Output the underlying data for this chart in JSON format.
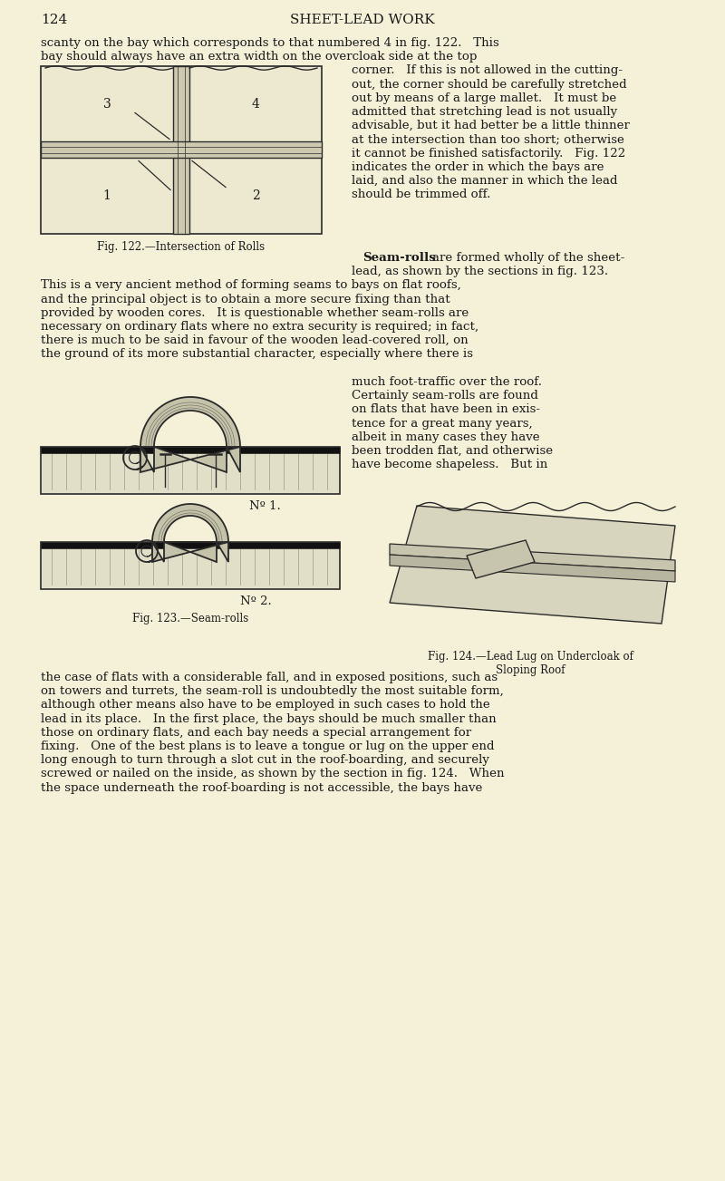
{
  "bg_color": "#f5f0d8",
  "page_number": "124",
  "header_title": "SHEET-LEAD WORK",
  "fig122_caption": "Fig. 122.—Intersection of Rolls",
  "fig123_caption": "Fig. 123.—Seam-rolls",
  "fig124_caption": "Fig. 124.—Lead Lug on Undercloak of\nSloping Roof",
  "no1_label": "Nº 1.",
  "no2_label": "Nº 2.",
  "text_color": "#1a1a1a",
  "line_color": "#2a2a2a",
  "right_col_texts": [
    "corner.   If this is not allowed in the cutting-",
    "out, the corner should be carefully stretched",
    "out by means of a large mallet.   It must be",
    "admitted that stretching lead is not usually",
    "advisable, but it had better be a little thinner",
    "at the intersection than too short; otherwise",
    "it cannot be finished satisfactorily.   Fig. 122",
    "indicates the order in which the bays are",
    "laid, and also the manner in which the lead",
    "should be trimmed off."
  ],
  "full_paragraphs": [
    "This is a very ancient method of forming seams to bays on flat roofs,",
    "and the principal object is to obtain a more secure fixing than that",
    "provided by wooden cores.   It is questionable whether seam-rolls are",
    "necessary on ordinary flats where no extra security is required; in fact,",
    "there is much to be said in favour of the wooden lead-covered roll, on",
    "the ground of its more substantial character, especially where there is"
  ],
  "right_text_2": [
    "much foot-traffic over the roof.",
    "Certainly seam-rolls are found",
    "on flats that have been in exis-",
    "tence for a great many years,",
    "albeit in many cases they have",
    "been trodden flat, and otherwise",
    "have become shapeless.   But in"
  ],
  "bottom_texts": [
    "the case of flats with a considerable fall, and in exposed positions, such as",
    "on towers and turrets, the seam-roll is undoubtedly the most suitable form,",
    "although other means also have to be employed in such cases to hold the",
    "lead in its place.   In the first place, the bays should be much smaller than",
    "those on ordinary flats, and each bay needs a special arrangement for",
    "fixing.   One of the best plans is to leave a tongue or lug on the upper end",
    "long enough to turn through a slot cut in the roof-boarding, and securely",
    "screwed or nailed on the inside, as shown by the section in fig. 124.   When",
    "the space underneath the roof-boarding is not accessible, the bays have"
  ]
}
